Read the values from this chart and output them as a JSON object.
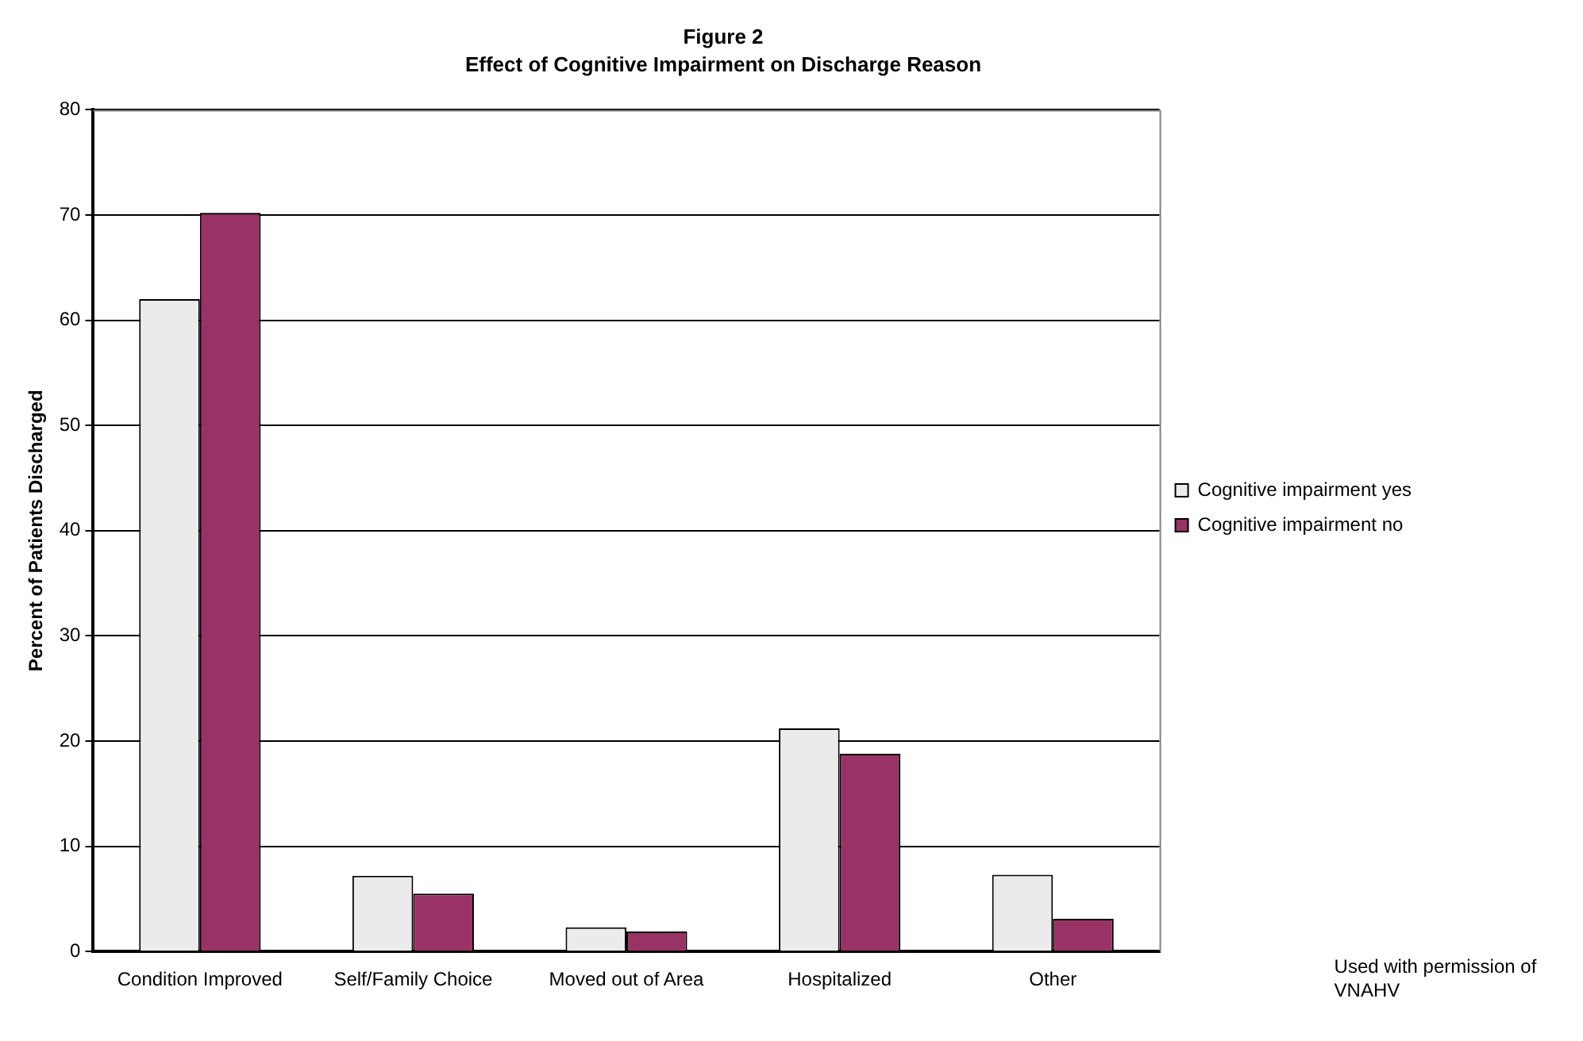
{
  "chart_data": {
    "type": "bar",
    "title": "Figure 2",
    "subtitle": "Effect of Cognitive Impairment on Discharge Reason",
    "ylabel": "Percent of Patients Discharged",
    "categories": [
      "Condition Improved",
      "Self/Family Choice",
      "Moved out of Area",
      "Hospitalized",
      "Other"
    ],
    "series": [
      {
        "name": "Cognitive impairment yes",
        "color": "#ebebeb",
        "values": [
          62,
          7.2,
          2.3,
          21.2,
          7.3
        ]
      },
      {
        "name": "Cognitive impairment no",
        "color": "#993366",
        "values": [
          70.2,
          5.5,
          1.9,
          18.8,
          3.1
        ]
      }
    ],
    "ylim": [
      0,
      80
    ],
    "yticks": [
      0,
      10,
      20,
      30,
      40,
      50,
      60,
      70,
      80
    ],
    "grid": "y",
    "legend": "right",
    "annotations": [
      "Used with permission of VNAHV"
    ]
  }
}
